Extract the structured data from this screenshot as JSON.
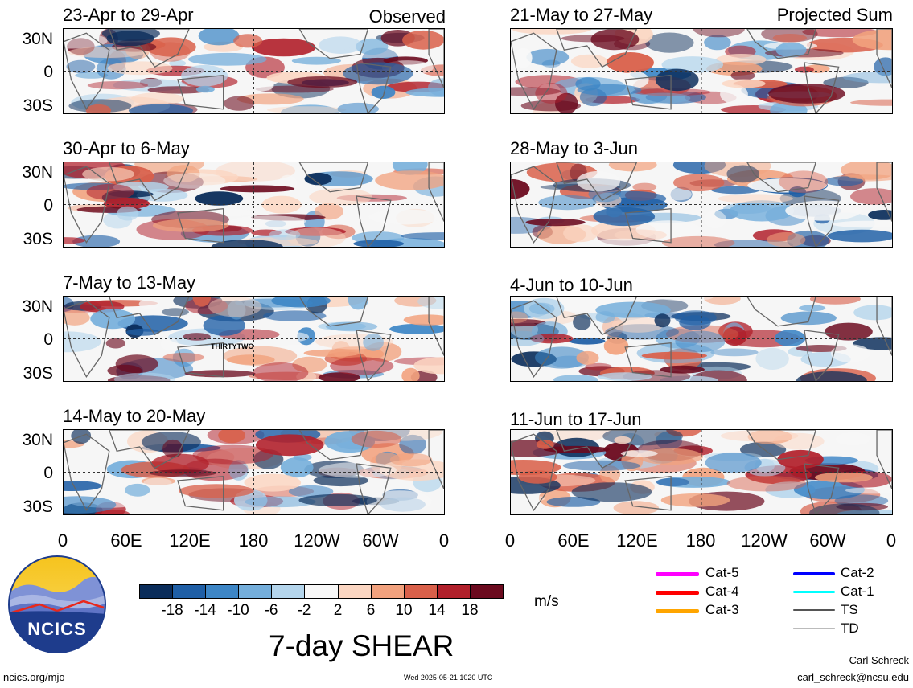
{
  "panels_left": [
    {
      "title": "23-Apr to 29-Apr",
      "tag": "Observed"
    },
    {
      "title": "30-Apr to 6-May",
      "tag": ""
    },
    {
      "title": "7-May to 13-May",
      "tag": ""
    },
    {
      "title": "14-May to 20-May",
      "tag": ""
    }
  ],
  "panels_right": [
    {
      "title": "21-May to 27-May",
      "tag": "Projected Sum"
    },
    {
      "title": "28-May to 3-Jun",
      "tag": ""
    },
    {
      "title": "4-Jun to 10-Jun",
      "tag": ""
    },
    {
      "title": "11-Jun to 17-Jun",
      "tag": ""
    }
  ],
  "storm_label": "THIRTYTWO",
  "lat_labels": [
    "30N",
    "0",
    "30S"
  ],
  "lon_labels": [
    "0",
    "60E",
    "120E",
    "180",
    "120W",
    "60W",
    "0"
  ],
  "colorbar": {
    "colors": [
      "#0a2c5a",
      "#1f5fa6",
      "#3d86c6",
      "#74aedb",
      "#b4d5ec",
      "#f7f7f7",
      "#fbd6c2",
      "#f2a27e",
      "#d9604a",
      "#b1202b",
      "#6b0a1e"
    ],
    "labels": [
      "-18",
      "-14",
      "-10",
      "-6",
      "-2",
      "2",
      "6",
      "10",
      "14",
      "18"
    ],
    "units": "m/s"
  },
  "main_title": "7-day SHEAR",
  "logo_text": "NCICS",
  "legend": [
    {
      "label": "Cat-5",
      "color": "#ff00ff"
    },
    {
      "label": "Cat-4",
      "color": "#ff0000"
    },
    {
      "label": "Cat-3",
      "color": "#ffa500"
    },
    {
      "label": "Cat-2",
      "color": "#0000ff"
    },
    {
      "label": "Cat-1",
      "color": "#00ffff"
    },
    {
      "label": "TS",
      "color": "#555555"
    },
    {
      "label": "TD",
      "color": "#bbbbbb"
    }
  ],
  "footer": {
    "left": "ncics.org/mjo",
    "center": "Wed 2025-05-21 1020 UTC",
    "author": "Carl Schreck",
    "email": "carl_schreck@ncsu.edu"
  }
}
